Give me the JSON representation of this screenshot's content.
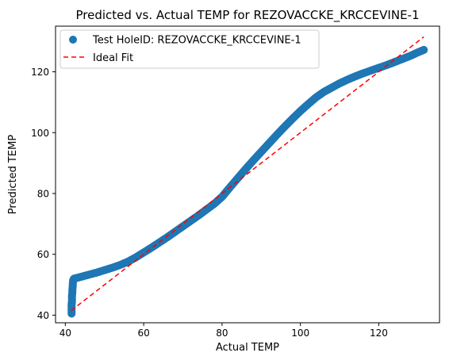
{
  "chart_data": {
    "type": "scatter",
    "title": "Predicted vs. Actual TEMP for REZOVACCKE_KRCCEVINE-1",
    "xlabel": "Actual TEMP",
    "ylabel": "Predicted TEMP",
    "xlim": [
      37.5,
      135.5
    ],
    "ylim": [
      37.5,
      135.0
    ],
    "xticks": [
      40,
      60,
      80,
      100,
      120
    ],
    "yticks": [
      40,
      60,
      80,
      100,
      120
    ],
    "grid": false,
    "legend_placement": "top-left",
    "series": [
      {
        "name": "Test HoleID: REZOVACCKE_KRCCEVINE-1",
        "kind": "scatter",
        "color": "#1f77b4",
        "points": [
          [
            41.6,
            40.5
          ],
          [
            41.6,
            41.5
          ],
          [
            41.6,
            42.5
          ],
          [
            41.6,
            43.5
          ],
          [
            41.7,
            44.5
          ],
          [
            41.7,
            45.5
          ],
          [
            41.7,
            46.5
          ],
          [
            41.8,
            47.5
          ],
          [
            41.8,
            48.5
          ],
          [
            41.9,
            49.5
          ],
          [
            41.9,
            50.5
          ],
          [
            42.0,
            51.5
          ],
          [
            42.2,
            52.0
          ],
          [
            44,
            52.6
          ],
          [
            46,
            53.3
          ],
          [
            48,
            54.0
          ],
          [
            50,
            54.8
          ],
          [
            52,
            55.6
          ],
          [
            54,
            56.5
          ],
          [
            56,
            57.6
          ],
          [
            58,
            59.0
          ],
          [
            60,
            60.6
          ],
          [
            62,
            62.2
          ],
          [
            64,
            63.9
          ],
          [
            66,
            65.6
          ],
          [
            68,
            67.4
          ],
          [
            70,
            69.2
          ],
          [
            72,
            71.0
          ],
          [
            74,
            72.8
          ],
          [
            76,
            74.7
          ],
          [
            78,
            76.6
          ],
          [
            80,
            78.9
          ],
          [
            82,
            82.0
          ],
          [
            84,
            85.0
          ],
          [
            86,
            88.0
          ],
          [
            88,
            90.9
          ],
          [
            90,
            93.7
          ],
          [
            92,
            96.5
          ],
          [
            94,
            99.3
          ],
          [
            96,
            102.0
          ],
          [
            98,
            104.6
          ],
          [
            100,
            107.1
          ],
          [
            102,
            109.4
          ],
          [
            104,
            111.6
          ],
          [
            106,
            113.4
          ],
          [
            108,
            114.8
          ],
          [
            110,
            116.2
          ],
          [
            112,
            117.4
          ],
          [
            114,
            118.5
          ],
          [
            116,
            119.5
          ],
          [
            118,
            120.4
          ],
          [
            120,
            121.3
          ],
          [
            122,
            122.2
          ],
          [
            124,
            123.2
          ],
          [
            126,
            124.2
          ],
          [
            128,
            125.2
          ],
          [
            130,
            126.4
          ],
          [
            131.5,
            127.2
          ]
        ]
      },
      {
        "name": "Ideal Fit",
        "kind": "line",
        "color": "#ff0000",
        "dash": "dashed",
        "x": [
          41.5,
          131.5
        ],
        "y": [
          41.5,
          131.5
        ]
      }
    ]
  }
}
